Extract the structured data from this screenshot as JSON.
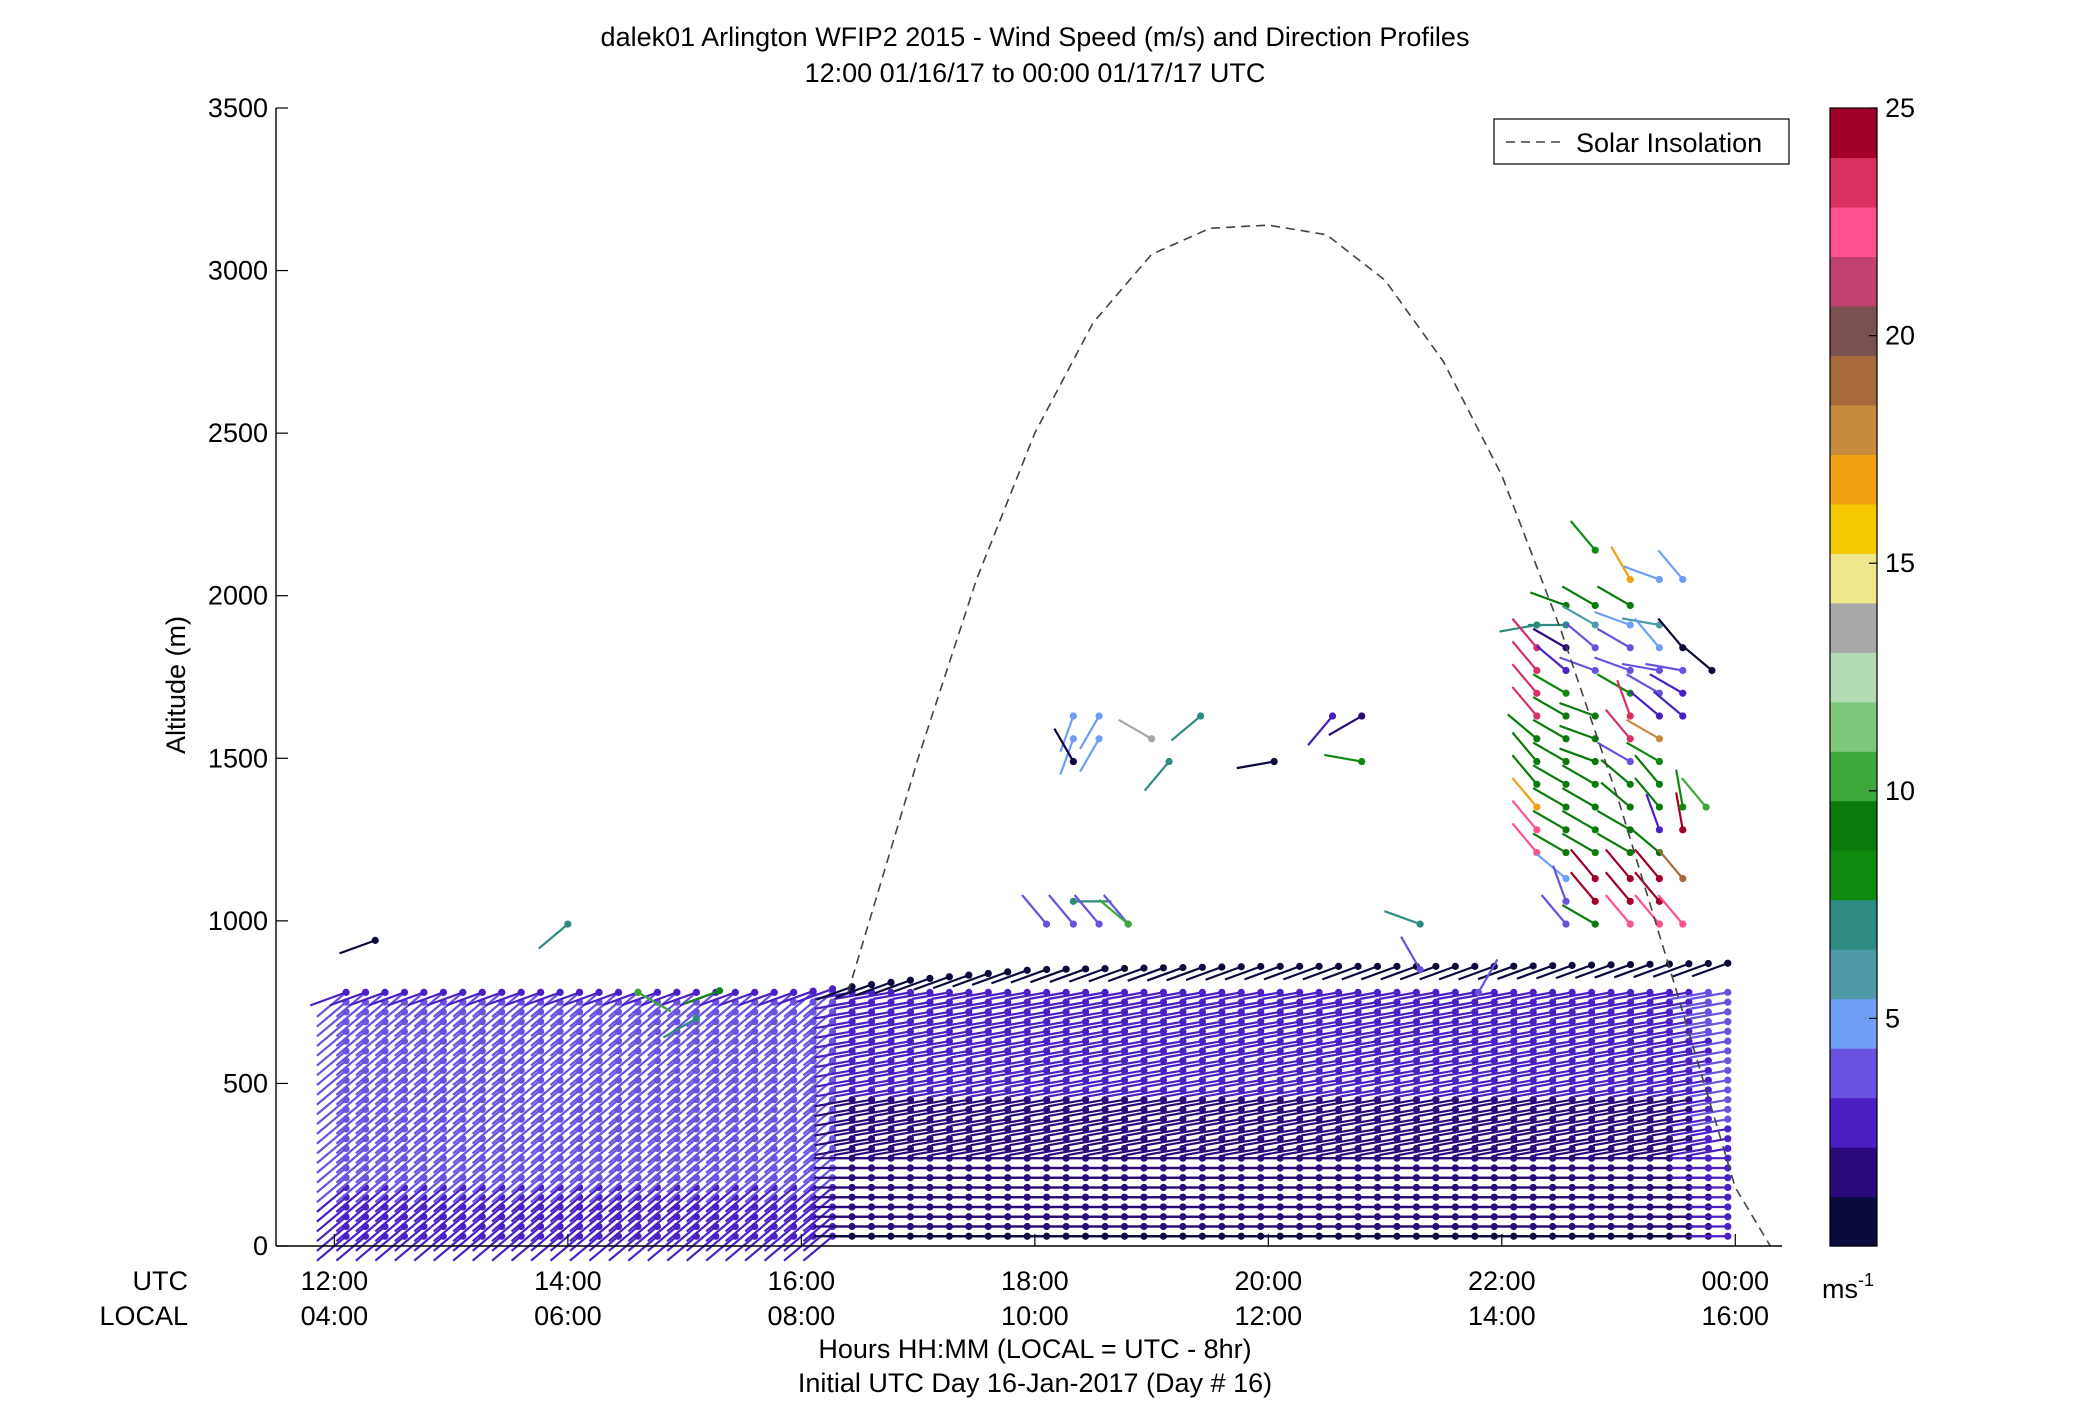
{
  "chart_data": {
    "type": "wind-barb profile",
    "title": "dalek01 Arlington WFIP2 2015 - Wind Speed (m/s) and Direction Profiles",
    "subtitle": "12:00 01/16/17 to 00:00 01/17/17  UTC",
    "ylabel": "Altitude (m)",
    "xlabel": "Hours HH:MM  (LOCAL = UTC - 8hr)",
    "xlabel2": "Initial UTC Day 16-Jan-2017 (Day # 16)",
    "row_labels": {
      "utc": "UTC",
      "local": "LOCAL"
    },
    "ylim": [
      0,
      3500
    ],
    "xlim_hours": [
      11.5,
      24.4
    ],
    "y_ticks": [
      0,
      500,
      1000,
      1500,
      2000,
      2500,
      3000,
      3500
    ],
    "x_ticks_utc": [
      "12:00",
      "14:00",
      "16:00",
      "18:00",
      "20:00",
      "22:00",
      "00:00"
    ],
    "x_ticks_local": [
      "04:00",
      "06:00",
      "08:00",
      "10:00",
      "12:00",
      "14:00",
      "16:00"
    ],
    "x_tick_hours": [
      12,
      14,
      16,
      18,
      20,
      22,
      24
    ],
    "legend": {
      "entries": [
        "Solar Insolation"
      ],
      "placement": "top-right"
    },
    "colorbar": {
      "range": [
        0,
        25
      ],
      "ticks": [
        5,
        10,
        15,
        20,
        25
      ],
      "unit_base": "ms",
      "unit_exp": "-1",
      "colors": [
        "#0a0a3c",
        "#2a0a7a",
        "#4b1fc4",
        "#6a52e0",
        "#6e9ef5",
        "#4f9aa8",
        "#2e8b82",
        "#0f8a0f",
        "#0a7a0a",
        "#3ca83c",
        "#7cc87c",
        "#b4dcb4",
        "#a8a8a8",
        "#f0e68c",
        "#f5c800",
        "#f0a010",
        "#c88a3c",
        "#a86a3c",
        "#7a5050",
        "#c04070",
        "#ff5090",
        "#d83060",
        "#a00028"
      ]
    },
    "solar_insolation": {
      "style": "dashed",
      "x_hours": [
        16.4,
        17.0,
        17.5,
        18.0,
        18.5,
        19.0,
        19.5,
        20.0,
        20.5,
        21.0,
        21.5,
        22.0,
        22.5,
        23.0,
        23.5,
        24.0,
        24.3
      ],
      "y": [
        780,
        1500,
        2050,
        2500,
        2840,
        3050,
        3130,
        3140,
        3110,
        2970,
        2720,
        2370,
        1900,
        1370,
        780,
        180,
        0
      ]
    },
    "profile_band": {
      "start_hours": 12.1,
      "end_hours": 24.0,
      "step_hours": 0.1667,
      "heights": [
        30,
        60,
        90,
        120,
        150,
        180,
        210,
        240,
        270,
        300,
        330,
        360,
        390,
        420,
        450,
        480,
        510,
        540,
        570,
        600,
        630,
        660,
        690,
        720,
        750,
        780
      ],
      "top_heights_by_hour": {
        "12": 780,
        "16": 780,
        "17": 820,
        "18": 850,
        "20": 860,
        "22": 860,
        "24": 870
      },
      "speeds_m_s": {
        "low_level_morning": 3,
        "upper_morning": 4,
        "low_level_afternoon": 1,
        "upper_afternoon": 3
      },
      "directions_deg": {
        "morning": 230,
        "afternoon": 260
      }
    },
    "upper_barbs": [
      {
        "x_hours": 12.35,
        "y": 940,
        "speed": 0.5,
        "dir": 250
      },
      {
        "x_hours": 14.0,
        "y": 990,
        "speed": 7,
        "dir": 230
      },
      {
        "x_hours": 14.6,
        "y": 780,
        "speed": 10,
        "dir": 120
      },
      {
        "x_hours": 15.1,
        "y": 700,
        "speed": 7,
        "dir": 240
      },
      {
        "x_hours": 15.3,
        "y": 785,
        "speed": 8,
        "dir": 250
      },
      {
        "x_hours": 18.33,
        "y": 1630,
        "speed": 5,
        "dir": 200
      },
      {
        "x_hours": 18.33,
        "y": 1560,
        "speed": 5,
        "dir": 200
      },
      {
        "x_hours": 18.33,
        "y": 1490,
        "speed": 1,
        "dir": 330
      },
      {
        "x_hours": 18.55,
        "y": 1630,
        "speed": 5,
        "dir": 210
      },
      {
        "x_hours": 18.55,
        "y": 1560,
        "speed": 5,
        "dir": 210
      },
      {
        "x_hours": 19.0,
        "y": 1560,
        "speed": 14,
        "dir": 300
      },
      {
        "x_hours": 19.15,
        "y": 1490,
        "speed": 7,
        "dir": 220
      },
      {
        "x_hours": 19.42,
        "y": 1630,
        "speed": 7,
        "dir": 230
      },
      {
        "x_hours": 20.05,
        "y": 1490,
        "speed": 1,
        "dir": 260
      },
      {
        "x_hours": 20.55,
        "y": 1630,
        "speed": 3,
        "dir": 220
      },
      {
        "x_hours": 20.8,
        "y": 1630,
        "speed": 2,
        "dir": 240
      },
      {
        "x_hours": 20.8,
        "y": 1490,
        "speed": 8,
        "dir": 280
      },
      {
        "x_hours": 18.33,
        "y": 1060,
        "speed": 7,
        "dir": 90
      },
      {
        "x_hours": 18.1,
        "y": 990,
        "speed": 4,
        "dir": 320
      },
      {
        "x_hours": 18.33,
        "y": 990,
        "speed": 4,
        "dir": 320
      },
      {
        "x_hours": 18.55,
        "y": 990,
        "speed": 4,
        "dir": 320
      },
      {
        "x_hours": 18.8,
        "y": 990,
        "speed": 4,
        "dir": 320
      },
      {
        "x_hours": 18.8,
        "y": 990,
        "speed": 10,
        "dir": 310
      },
      {
        "x_hours": 21.3,
        "y": 990,
        "speed": 7,
        "dir": 290
      },
      {
        "x_hours": 21.3,
        "y": 850,
        "speed": 4,
        "dir": 330
      },
      {
        "x_hours": 21.8,
        "y": 780,
        "speed": 4,
        "dir": 30
      },
      {
        "x_hours": 22.8,
        "y": 2140,
        "speed": 8,
        "dir": 320
      },
      {
        "x_hours": 23.1,
        "y": 2050,
        "speed": 17,
        "dir": 330
      },
      {
        "x_hours": 23.35,
        "y": 2050,
        "speed": 5,
        "dir": 290
      },
      {
        "x_hours": 23.55,
        "y": 2050,
        "speed": 5,
        "dir": 320
      },
      {
        "x_hours": 22.55,
        "y": 1970,
        "speed": 9,
        "dir": 290
      },
      {
        "x_hours": 22.8,
        "y": 1970,
        "speed": 9,
        "dir": 300
      },
      {
        "x_hours": 23.1,
        "y": 1970,
        "speed": 9,
        "dir": 300
      },
      {
        "x_hours": 22.3,
        "y": 1910,
        "speed": 7,
        "dir": 260
      },
      {
        "x_hours": 22.55,
        "y": 1910,
        "speed": 7,
        "dir": 270
      },
      {
        "x_hours": 22.8,
        "y": 1910,
        "speed": 6,
        "dir": 300
      },
      {
        "x_hours": 23.1,
        "y": 1910,
        "speed": 5,
        "dir": 290
      },
      {
        "x_hours": 23.35,
        "y": 1910,
        "speed": 6,
        "dir": 280
      },
      {
        "x_hours": 22.3,
        "y": 1840,
        "speed": 23,
        "dir": 320
      },
      {
        "x_hours": 22.55,
        "y": 1840,
        "speed": 2,
        "dir": 300
      },
      {
        "x_hours": 22.8,
        "y": 1840,
        "speed": 4,
        "dir": 310
      },
      {
        "x_hours": 23.1,
        "y": 1840,
        "speed": 4,
        "dir": 300
      },
      {
        "x_hours": 23.35,
        "y": 1840,
        "speed": 5,
        "dir": 320
      },
      {
        "x_hours": 23.55,
        "y": 1840,
        "speed": 1,
        "dir": 320
      },
      {
        "x_hours": 23.8,
        "y": 1770,
        "speed": 1,
        "dir": 310
      },
      {
        "x_hours": 22.3,
        "y": 1770,
        "speed": 23,
        "dir": 320
      },
      {
        "x_hours": 22.55,
        "y": 1770,
        "speed": 3,
        "dir": 310
      },
      {
        "x_hours": 22.8,
        "y": 1770,
        "speed": 4,
        "dir": 290
      },
      {
        "x_hours": 23.1,
        "y": 1770,
        "speed": 4,
        "dir": 290
      },
      {
        "x_hours": 23.35,
        "y": 1770,
        "speed": 4,
        "dir": 280
      },
      {
        "x_hours": 23.55,
        "y": 1770,
        "speed": 4,
        "dir": 280
      },
      {
        "x_hours": 22.3,
        "y": 1700,
        "speed": 23,
        "dir": 320
      },
      {
        "x_hours": 22.55,
        "y": 1700,
        "speed": 8,
        "dir": 300
      },
      {
        "x_hours": 23.1,
        "y": 1700,
        "speed": 8,
        "dir": 300
      },
      {
        "x_hours": 23.35,
        "y": 1700,
        "speed": 4,
        "dir": 300
      },
      {
        "x_hours": 23.55,
        "y": 1700,
        "speed": 3,
        "dir": 300
      },
      {
        "x_hours": 22.3,
        "y": 1630,
        "speed": 23,
        "dir": 320
      },
      {
        "x_hours": 22.55,
        "y": 1630,
        "speed": 9,
        "dir": 300
      },
      {
        "x_hours": 22.8,
        "y": 1630,
        "speed": 9,
        "dir": 290
      },
      {
        "x_hours": 23.1,
        "y": 1630,
        "speed": 23,
        "dir": 340
      },
      {
        "x_hours": 23.35,
        "y": 1630,
        "speed": 3,
        "dir": 310
      },
      {
        "x_hours": 23.55,
        "y": 1630,
        "speed": 3,
        "dir": 310
      },
      {
        "x_hours": 22.3,
        "y": 1560,
        "speed": 9,
        "dir": 310
      },
      {
        "x_hours": 22.55,
        "y": 1560,
        "speed": 9,
        "dir": 300
      },
      {
        "x_hours": 22.8,
        "y": 1560,
        "speed": 9,
        "dir": 290
      },
      {
        "x_hours": 23.1,
        "y": 1560,
        "speed": 23,
        "dir": 320
      },
      {
        "x_hours": 23.35,
        "y": 1560,
        "speed": 18,
        "dir": 300
      },
      {
        "x_hours": 22.3,
        "y": 1490,
        "speed": 9,
        "dir": 320
      },
      {
        "x_hours": 22.55,
        "y": 1490,
        "speed": 9,
        "dir": 300
      },
      {
        "x_hours": 22.8,
        "y": 1490,
        "speed": 9,
        "dir": 290
      },
      {
        "x_hours": 23.1,
        "y": 1490,
        "speed": 4,
        "dir": 300
      },
      {
        "x_hours": 23.35,
        "y": 1490,
        "speed": 8,
        "dir": 300
      },
      {
        "x_hours": 22.3,
        "y": 1420,
        "speed": 9,
        "dir": 320
      },
      {
        "x_hours": 22.55,
        "y": 1420,
        "speed": 9,
        "dir": 300
      },
      {
        "x_hours": 22.8,
        "y": 1420,
        "speed": 9,
        "dir": 300
      },
      {
        "x_hours": 23.1,
        "y": 1420,
        "speed": 9,
        "dir": 310
      },
      {
        "x_hours": 23.35,
        "y": 1420,
        "speed": 9,
        "dir": 320
      },
      {
        "x_hours": 22.3,
        "y": 1350,
        "speed": 17,
        "dir": 320
      },
      {
        "x_hours": 22.55,
        "y": 1350,
        "speed": 9,
        "dir": 300
      },
      {
        "x_hours": 22.8,
        "y": 1350,
        "speed": 9,
        "dir": 300
      },
      {
        "x_hours": 23.1,
        "y": 1350,
        "speed": 9,
        "dir": 310
      },
      {
        "x_hours": 23.35,
        "y": 1350,
        "speed": 9,
        "dir": 320
      },
      {
        "x_hours": 23.75,
        "y": 1350,
        "speed": 10,
        "dir": 320
      },
      {
        "x_hours": 22.3,
        "y": 1280,
        "speed": 22,
        "dir": 320
      },
      {
        "x_hours": 22.55,
        "y": 1280,
        "speed": 9,
        "dir": 300
      },
      {
        "x_hours": 22.8,
        "y": 1280,
        "speed": 9,
        "dir": 300
      },
      {
        "x_hours": 23.1,
        "y": 1280,
        "speed": 9,
        "dir": 300
      },
      {
        "x_hours": 23.35,
        "y": 1280,
        "speed": 3,
        "dir": 340
      },
      {
        "x_hours": 23.55,
        "y": 1280,
        "speed": 25,
        "dir": 350
      },
      {
        "x_hours": 23.55,
        "y": 1350,
        "speed": 8,
        "dir": 350
      },
      {
        "x_hours": 22.3,
        "y": 1210,
        "speed": 22,
        "dir": 320
      },
      {
        "x_hours": 22.55,
        "y": 1210,
        "speed": 9,
        "dir": 300
      },
      {
        "x_hours": 22.8,
        "y": 1210,
        "speed": 9,
        "dir": 300
      },
      {
        "x_hours": 23.1,
        "y": 1210,
        "speed": 9,
        "dir": 300
      },
      {
        "x_hours": 23.35,
        "y": 1210,
        "speed": 9,
        "dir": 310
      },
      {
        "x_hours": 22.55,
        "y": 1130,
        "speed": 5,
        "dir": 310
      },
      {
        "x_hours": 22.8,
        "y": 1130,
        "speed": 24,
        "dir": 320
      },
      {
        "x_hours": 23.1,
        "y": 1130,
        "speed": 24,
        "dir": 320
      },
      {
        "x_hours": 23.35,
        "y": 1130,
        "speed": 24,
        "dir": 320
      },
      {
        "x_hours": 23.55,
        "y": 1130,
        "speed": 19,
        "dir": 320
      },
      {
        "x_hours": 22.55,
        "y": 1060,
        "speed": 4,
        "dir": 340
      },
      {
        "x_hours": 22.8,
        "y": 1060,
        "speed": 24,
        "dir": 320
      },
      {
        "x_hours": 23.1,
        "y": 1060,
        "speed": 24,
        "dir": 320
      },
      {
        "x_hours": 23.35,
        "y": 1060,
        "speed": 24,
        "dir": 320
      },
      {
        "x_hours": 22.55,
        "y": 990,
        "speed": 4,
        "dir": 320
      },
      {
        "x_hours": 22.8,
        "y": 990,
        "speed": 9,
        "dir": 300
      },
      {
        "x_hours": 23.1,
        "y": 990,
        "speed": 22,
        "dir": 320
      },
      {
        "x_hours": 23.35,
        "y": 990,
        "speed": 22,
        "dir": 320
      },
      {
        "x_hours": 23.55,
        "y": 990,
        "speed": 22,
        "dir": 320
      }
    ]
  }
}
